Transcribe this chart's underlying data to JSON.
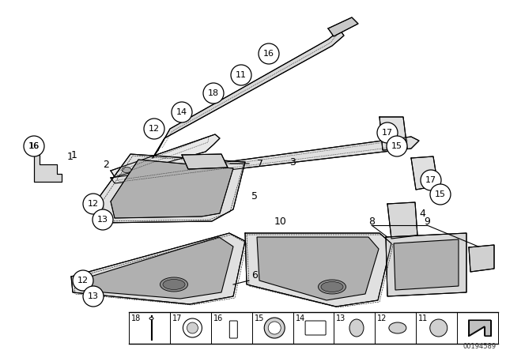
{
  "bg_color": "#ffffff",
  "line_color": "#000000",
  "diagram_id": "00194589",
  "figsize": [
    6.4,
    4.48
  ],
  "dpi": 100
}
